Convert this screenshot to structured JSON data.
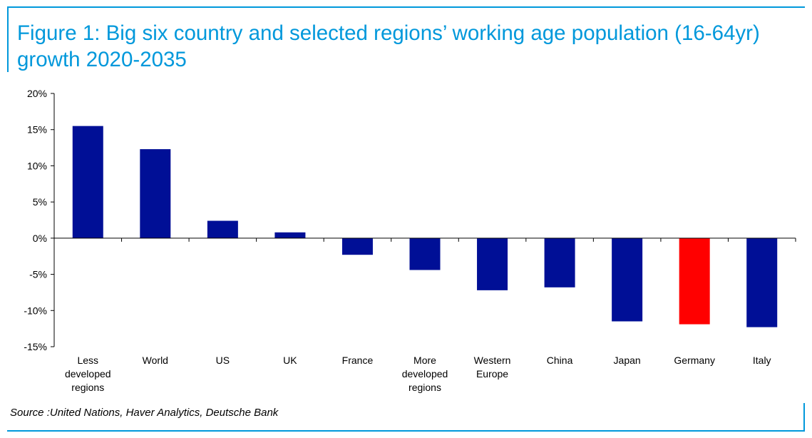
{
  "figure": {
    "title": "Figure 1: Big six country and selected regions’ working age population (16-64yr) growth 2020-2035",
    "source": "Source :United Nations, Haver Analytics, Deutsche Bank"
  },
  "colors": {
    "accent": "#0098db",
    "bar": "#000f96",
    "highlight": "#ff0000"
  },
  "chart_data": {
    "type": "bar",
    "title": "Figure 1: Big six country and selected regions’ working age population (16-64yr) growth 2020-2035",
    "categories": [
      [
        "Less",
        "developed",
        "regions"
      ],
      [
        "World"
      ],
      [
        "US"
      ],
      [
        "UK"
      ],
      [
        "France"
      ],
      [
        "More",
        "developed",
        "regions"
      ],
      [
        "Western",
        "Europe"
      ],
      [
        "China"
      ],
      [
        "Japan"
      ],
      [
        "Germany"
      ],
      [
        "Italy"
      ]
    ],
    "values": [
      15.5,
      12.3,
      2.4,
      0.8,
      -2.3,
      -4.4,
      -7.2,
      -6.8,
      -11.5,
      -11.9,
      -12.3
    ],
    "highlight_category": "Germany",
    "ylim": [
      -15,
      20
    ],
    "yticks": [
      -15,
      -10,
      -5,
      0,
      5,
      10,
      15,
      20
    ],
    "ytick_labels": [
      "-15%",
      "-10%",
      "-5%",
      "0%",
      "5%",
      "10%",
      "15%",
      "20%"
    ],
    "xlabel": "",
    "ylabel": "",
    "grid": false,
    "legend": "none"
  }
}
